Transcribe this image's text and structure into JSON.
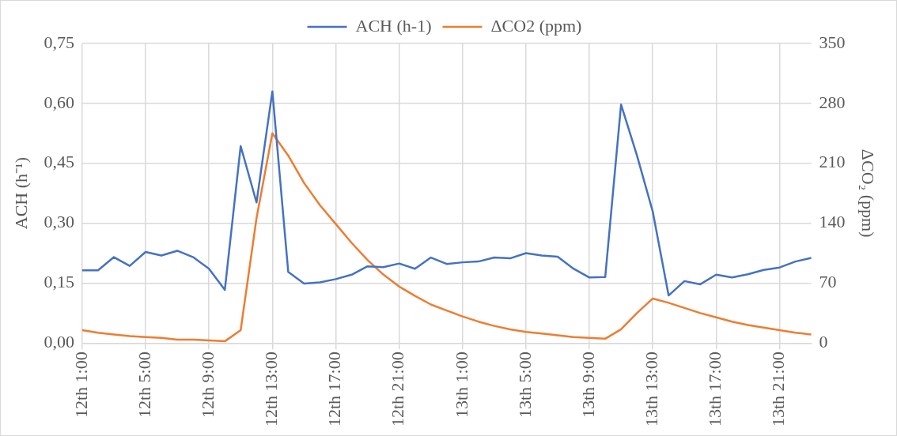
{
  "chart_data": {
    "type": "line",
    "ylabel": "ACH (h⁻¹)",
    "y2label": "ΔCO₂ (ppm)",
    "categories": [
      "12th 1:00",
      null,
      null,
      null,
      "12th 5:00",
      null,
      null,
      null,
      "12th 9:00",
      null,
      null,
      null,
      "12th 13:00",
      null,
      null,
      null,
      "12th 17:00",
      null,
      null,
      null,
      "12th 21:00",
      null,
      null,
      null,
      "13th 1:00",
      null,
      null,
      null,
      "13th 5:00",
      null,
      null,
      null,
      "13th 9:00",
      null,
      null,
      null,
      "13th 13:00",
      null,
      null,
      null,
      "13th 17:00",
      null,
      null,
      null,
      "13th 21:00",
      null,
      null
    ],
    "series": [
      {
        "name": "ACH (h-1)",
        "color": "#4472c4",
        "values": [
          0.182,
          0.182,
          0.215,
          0.193,
          0.228,
          0.219,
          0.231,
          0.215,
          0.186,
          0.133,
          0.493,
          0.352,
          0.63,
          0.178,
          0.149,
          0.152,
          0.16,
          0.171,
          0.192,
          0.19,
          0.199,
          0.186,
          0.214,
          0.198,
          0.202,
          0.204,
          0.214,
          0.212,
          0.225,
          0.219,
          0.216,
          0.186,
          0.164,
          0.165,
          0.597,
          0.47,
          0.329,
          0.119,
          0.155,
          0.147,
          0.171,
          0.164,
          0.172,
          0.183,
          0.189,
          0.204,
          0.213
        ]
      },
      {
        "name": "ΔCO2 (ppm)",
        "color": "#ed7d31",
        "axis": "y2",
        "values": [
          15,
          12,
          10,
          8,
          7,
          6,
          4,
          4,
          3,
          2,
          15,
          146,
          245,
          219,
          187,
          161,
          139,
          117,
          97,
          80,
          66,
          55,
          45,
          38,
          31,
          25,
          20,
          16,
          13,
          11,
          9,
          7,
          6,
          5,
          16,
          35,
          52,
          47,
          41,
          35,
          30,
          25,
          21,
          18,
          15,
          12,
          10
        ]
      }
    ],
    "ylim": [
      0,
      0.75
    ],
    "yticks": [
      {
        "value": 0,
        "label": "0,00"
      },
      {
        "value": 0.15,
        "label": "0,15"
      },
      {
        "value": 0.3,
        "label": "0,30"
      },
      {
        "value": 0.45,
        "label": "0,45"
      },
      {
        "value": 0.6,
        "label": "0,60"
      },
      {
        "value": 0.75,
        "label": "0,75"
      }
    ],
    "y2lim": [
      0,
      350
    ],
    "y2ticks": [
      0,
      70,
      140,
      210,
      280,
      350
    ],
    "grid": true,
    "legend": "top",
    "marker": "none",
    "line_style": "solid"
  }
}
